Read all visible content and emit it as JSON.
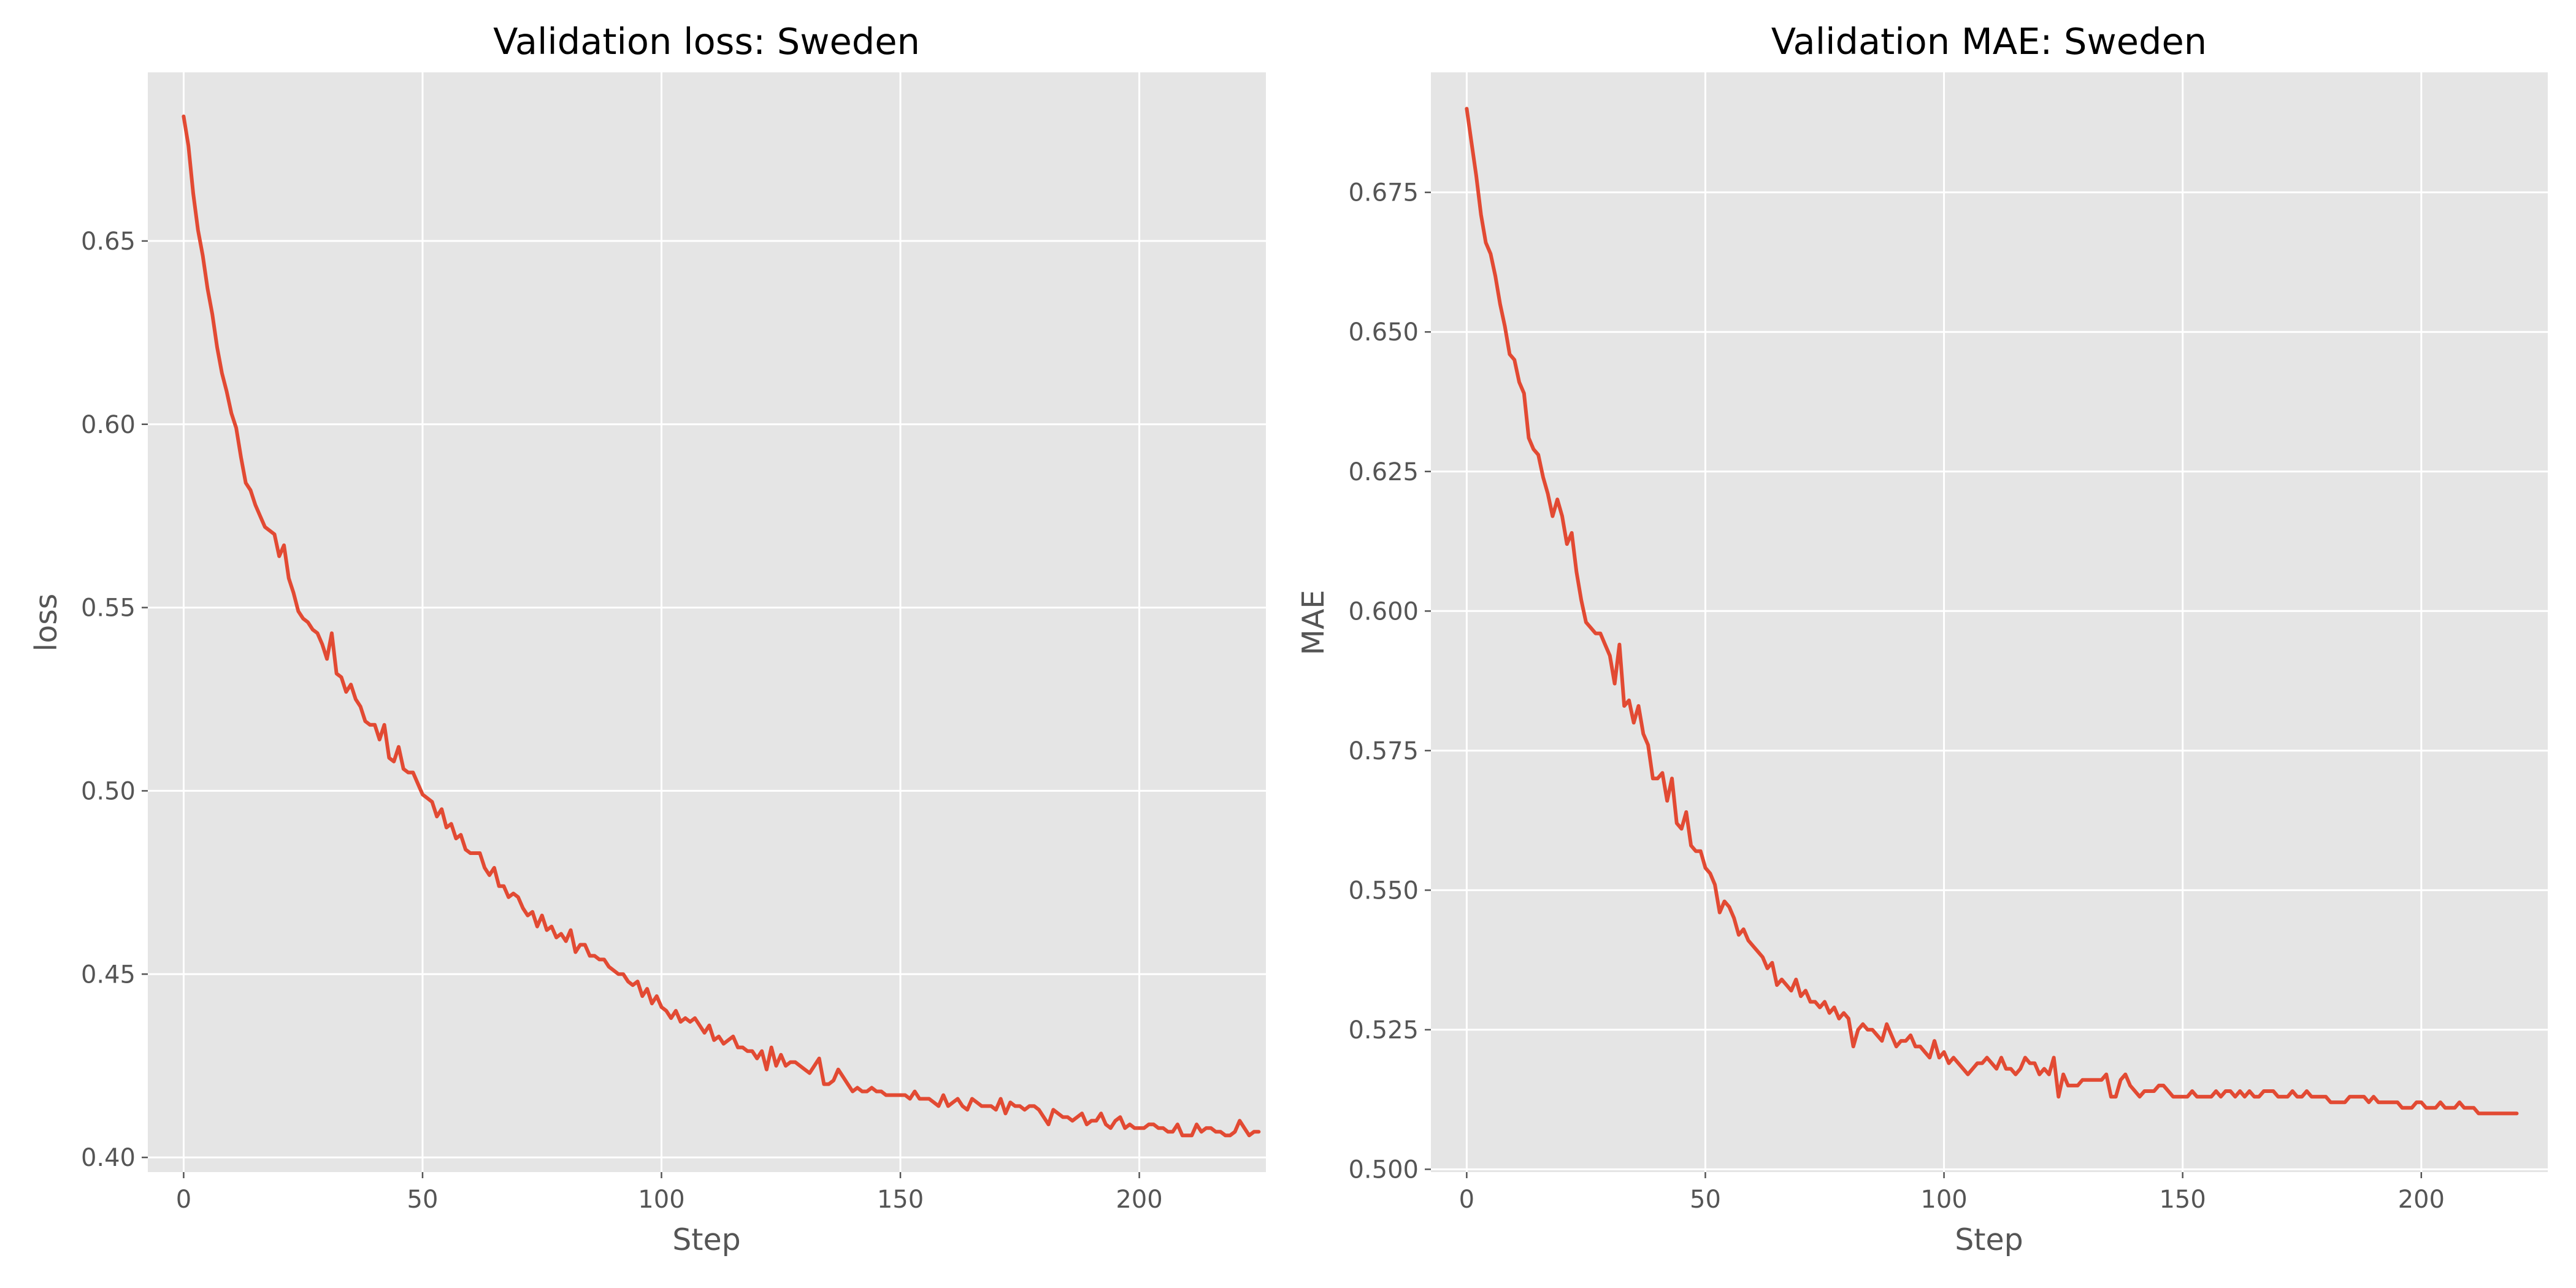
{
  "chart_data": [
    {
      "type": "line",
      "title": "Validation loss: Sweden",
      "xlabel": "Step",
      "ylabel": "loss",
      "xlim": [
        -7.5,
        226.5
      ],
      "ylim": [
        0.396,
        0.696
      ],
      "xticks": [
        0,
        50,
        100,
        150,
        200
      ],
      "yticks": [
        0.4,
        0.45,
        0.5,
        0.55,
        0.6,
        0.65
      ],
      "ytick_labels": [
        "0.40",
        "0.45",
        "0.50",
        "0.55",
        "0.60",
        "0.65"
      ],
      "grid": true,
      "series": [
        {
          "color": "#E24A33",
          "x_start": 0,
          "x_step": 1,
          "values": [
            0.684,
            0.676,
            0.663,
            0.653,
            0.646,
            0.637,
            0.63,
            0.621,
            0.614,
            0.609,
            0.603,
            0.599,
            0.591,
            0.584,
            0.582,
            0.578,
            0.575,
            0.572,
            0.571,
            0.57,
            0.564,
            0.567,
            0.558,
            0.554,
            0.549,
            0.547,
            0.546,
            0.544,
            0.543,
            0.54,
            0.536,
            0.543,
            0.532,
            0.531,
            0.527,
            0.529,
            0.525,
            0.523,
            0.519,
            0.518,
            0.518,
            0.514,
            0.518,
            0.509,
            0.508,
            0.512,
            0.506,
            0.505,
            0.505,
            0.502,
            0.499,
            0.498,
            0.497,
            0.493,
            0.495,
            0.49,
            0.491,
            0.487,
            0.488,
            0.484,
            0.483,
            0.483,
            0.483,
            0.479,
            0.477,
            0.479,
            0.474,
            0.474,
            0.471,
            0.472,
            0.471,
            0.468,
            0.466,
            0.467,
            0.463,
            0.466,
            0.462,
            0.463,
            0.46,
            0.461,
            0.459,
            0.462,
            0.456,
            0.458,
            0.458,
            0.455,
            0.455,
            0.454,
            0.454,
            0.452,
            0.451,
            0.45,
            0.45,
            0.448,
            0.447,
            0.448,
            0.444,
            0.446,
            0.442,
            0.444,
            0.441,
            0.44,
            0.438,
            0.44,
            0.437,
            0.438,
            0.437,
            0.438,
            0.436,
            0.434,
            0.436,
            0.432,
            0.433,
            0.431,
            0.432,
            0.433,
            0.43,
            0.43,
            0.429,
            0.429,
            0.427,
            0.429,
            0.424,
            0.43,
            0.425,
            0.428,
            0.425,
            0.426,
            0.426,
            0.425,
            0.424,
            0.423,
            0.425,
            0.427,
            0.42,
            0.42,
            0.421,
            0.424,
            0.422,
            0.42,
            0.418,
            0.419,
            0.418,
            0.418,
            0.419,
            0.418,
            0.418,
            0.417,
            0.417,
            0.417,
            0.417,
            0.417,
            0.416,
            0.418,
            0.416,
            0.416,
            0.416,
            0.415,
            0.414,
            0.417,
            0.414,
            0.415,
            0.416,
            0.414,
            0.413,
            0.416,
            0.415,
            0.414,
            0.414,
            0.414,
            0.413,
            0.416,
            0.412,
            0.415,
            0.414,
            0.414,
            0.413,
            0.414,
            0.414,
            0.413,
            0.411,
            0.409,
            0.413,
            0.412,
            0.411,
            0.411,
            0.41,
            0.411,
            0.412,
            0.409,
            0.41,
            0.41,
            0.412,
            0.409,
            0.408,
            0.41,
            0.411,
            0.408,
            0.409,
            0.408,
            0.408,
            0.408,
            0.409,
            0.409,
            0.408,
            0.408,
            0.407,
            0.407,
            0.409,
            0.406,
            0.406,
            0.406,
            0.409,
            0.407,
            0.408,
            0.408,
            0.407,
            0.407,
            0.406,
            0.406,
            0.407,
            0.41,
            0.408,
            0.406,
            0.407,
            0.407
          ]
        }
      ]
    },
    {
      "type": "line",
      "title": "Validation MAE: Sweden",
      "xlabel": "Step",
      "ylabel": "MAE",
      "xlim": [
        -7.5,
        226.5
      ],
      "ylim": [
        0.4995,
        0.6965
      ],
      "xticks": [
        0,
        50,
        100,
        150,
        200
      ],
      "yticks": [
        0.5,
        0.525,
        0.55,
        0.575,
        0.6,
        0.625,
        0.65,
        0.675
      ],
      "ytick_labels": [
        "0.500",
        "0.525",
        "0.550",
        "0.575",
        "0.600",
        "0.625",
        "0.650",
        "0.675"
      ],
      "grid": true,
      "series": [
        {
          "color": "#E24A33",
          "x_start": 0,
          "x_step": 1,
          "values": [
            0.69,
            0.684,
            0.678,
            0.671,
            0.666,
            0.664,
            0.66,
            0.655,
            0.651,
            0.646,
            0.645,
            0.641,
            0.639,
            0.631,
            0.629,
            0.628,
            0.624,
            0.621,
            0.617,
            0.62,
            0.617,
            0.612,
            0.614,
            0.607,
            0.602,
            0.598,
            0.597,
            0.596,
            0.596,
            0.594,
            0.592,
            0.587,
            0.594,
            0.583,
            0.584,
            0.58,
            0.583,
            0.578,
            0.576,
            0.57,
            0.57,
            0.571,
            0.566,
            0.57,
            0.562,
            0.561,
            0.564,
            0.558,
            0.557,
            0.557,
            0.554,
            0.553,
            0.551,
            0.546,
            0.548,
            0.547,
            0.545,
            0.542,
            0.543,
            0.541,
            0.54,
            0.539,
            0.538,
            0.536,
            0.537,
            0.533,
            0.534,
            0.533,
            0.532,
            0.534,
            0.531,
            0.532,
            0.53,
            0.53,
            0.529,
            0.53,
            0.528,
            0.529,
            0.527,
            0.528,
            0.527,
            0.522,
            0.525,
            0.526,
            0.525,
            0.525,
            0.524,
            0.523,
            0.526,
            0.524,
            0.522,
            0.523,
            0.523,
            0.524,
            0.522,
            0.522,
            0.521,
            0.52,
            0.523,
            0.52,
            0.521,
            0.519,
            0.52,
            0.519,
            0.518,
            0.517,
            0.518,
            0.519,
            0.519,
            0.52,
            0.519,
            0.518,
            0.52,
            0.518,
            0.518,
            0.517,
            0.518,
            0.52,
            0.519,
            0.519,
            0.517,
            0.518,
            0.517,
            0.52,
            0.513,
            0.517,
            0.515,
            0.515,
            0.515,
            0.516,
            0.516,
            0.516,
            0.516,
            0.516,
            0.517,
            0.513,
            0.513,
            0.516,
            0.517,
            0.515,
            0.514,
            0.513,
            0.514,
            0.514,
            0.514,
            0.515,
            0.515,
            0.514,
            0.513,
            0.513,
            0.513,
            0.513,
            0.514,
            0.513,
            0.513,
            0.513,
            0.513,
            0.514,
            0.513,
            0.514,
            0.514,
            0.513,
            0.514,
            0.513,
            0.514,
            0.513,
            0.513,
            0.514,
            0.514,
            0.514,
            0.513,
            0.513,
            0.513,
            0.514,
            0.513,
            0.513,
            0.514,
            0.513,
            0.513,
            0.513,
            0.513,
            0.512,
            0.512,
            0.512,
            0.512,
            0.513,
            0.513,
            0.513,
            0.513,
            0.512,
            0.513,
            0.512,
            0.512,
            0.512,
            0.512,
            0.512,
            0.511,
            0.511,
            0.511,
            0.512,
            0.512,
            0.511,
            0.511,
            0.511,
            0.512,
            0.511,
            0.511,
            0.511,
            0.512,
            0.511,
            0.511,
            0.511,
            0.51,
            0.51,
            0.51,
            0.51,
            0.51,
            0.51,
            0.51,
            0.51,
            0.51
          ]
        }
      ]
    }
  ]
}
